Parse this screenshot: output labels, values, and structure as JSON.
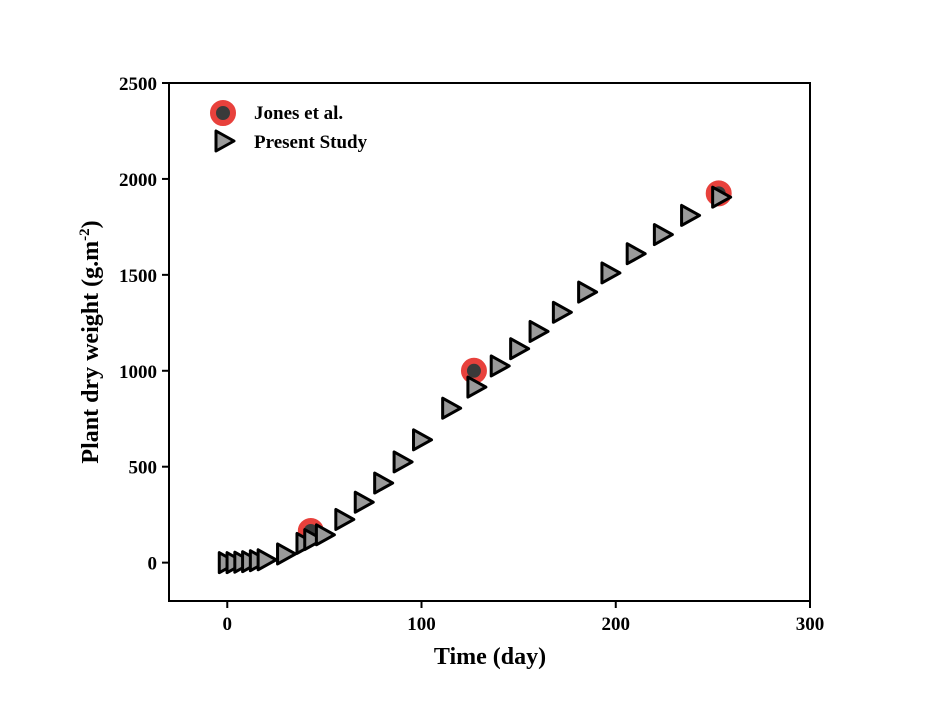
{
  "chart_data": {
    "type": "scatter",
    "title": "",
    "xlabel": "Time (day)",
    "ylabel_main": "Plant dry weight (g.m",
    "ylabel_sup": "-2",
    "ylabel_close": ")",
    "xlim": [
      -30,
      300
    ],
    "ylim": [
      -200,
      2500
    ],
    "x_ticks": [
      "0",
      "100",
      "200",
      "300"
    ],
    "y_ticks": [
      "0",
      "500",
      "1000",
      "1500",
      "2000",
      "2500"
    ],
    "grid": false,
    "legend_position": "top-left",
    "series": [
      {
        "name": "Jones et al.",
        "marker": "circle",
        "fill_color": "#3a3a3a",
        "edge_color": "#e8413c",
        "x": [
          43,
          127,
          253
        ],
        "y": [
          165,
          1000,
          1925
        ]
      },
      {
        "name": "Present Study",
        "marker": "triangle-right",
        "fill_color": "#9a9a9a",
        "edge_color": "#000000",
        "x": [
          0,
          4,
          8,
          12,
          16,
          20,
          30,
          40,
          44,
          50,
          60,
          70,
          80,
          90,
          100,
          115,
          128,
          140,
          150,
          160,
          172,
          185,
          197,
          210,
          224,
          238,
          254
        ],
        "y": [
          0,
          0,
          2,
          5,
          10,
          15,
          45,
          100,
          120,
          145,
          225,
          315,
          415,
          525,
          640,
          805,
          915,
          1025,
          1115,
          1205,
          1305,
          1410,
          1510,
          1610,
          1710,
          1810,
          1905
        ]
      }
    ]
  }
}
